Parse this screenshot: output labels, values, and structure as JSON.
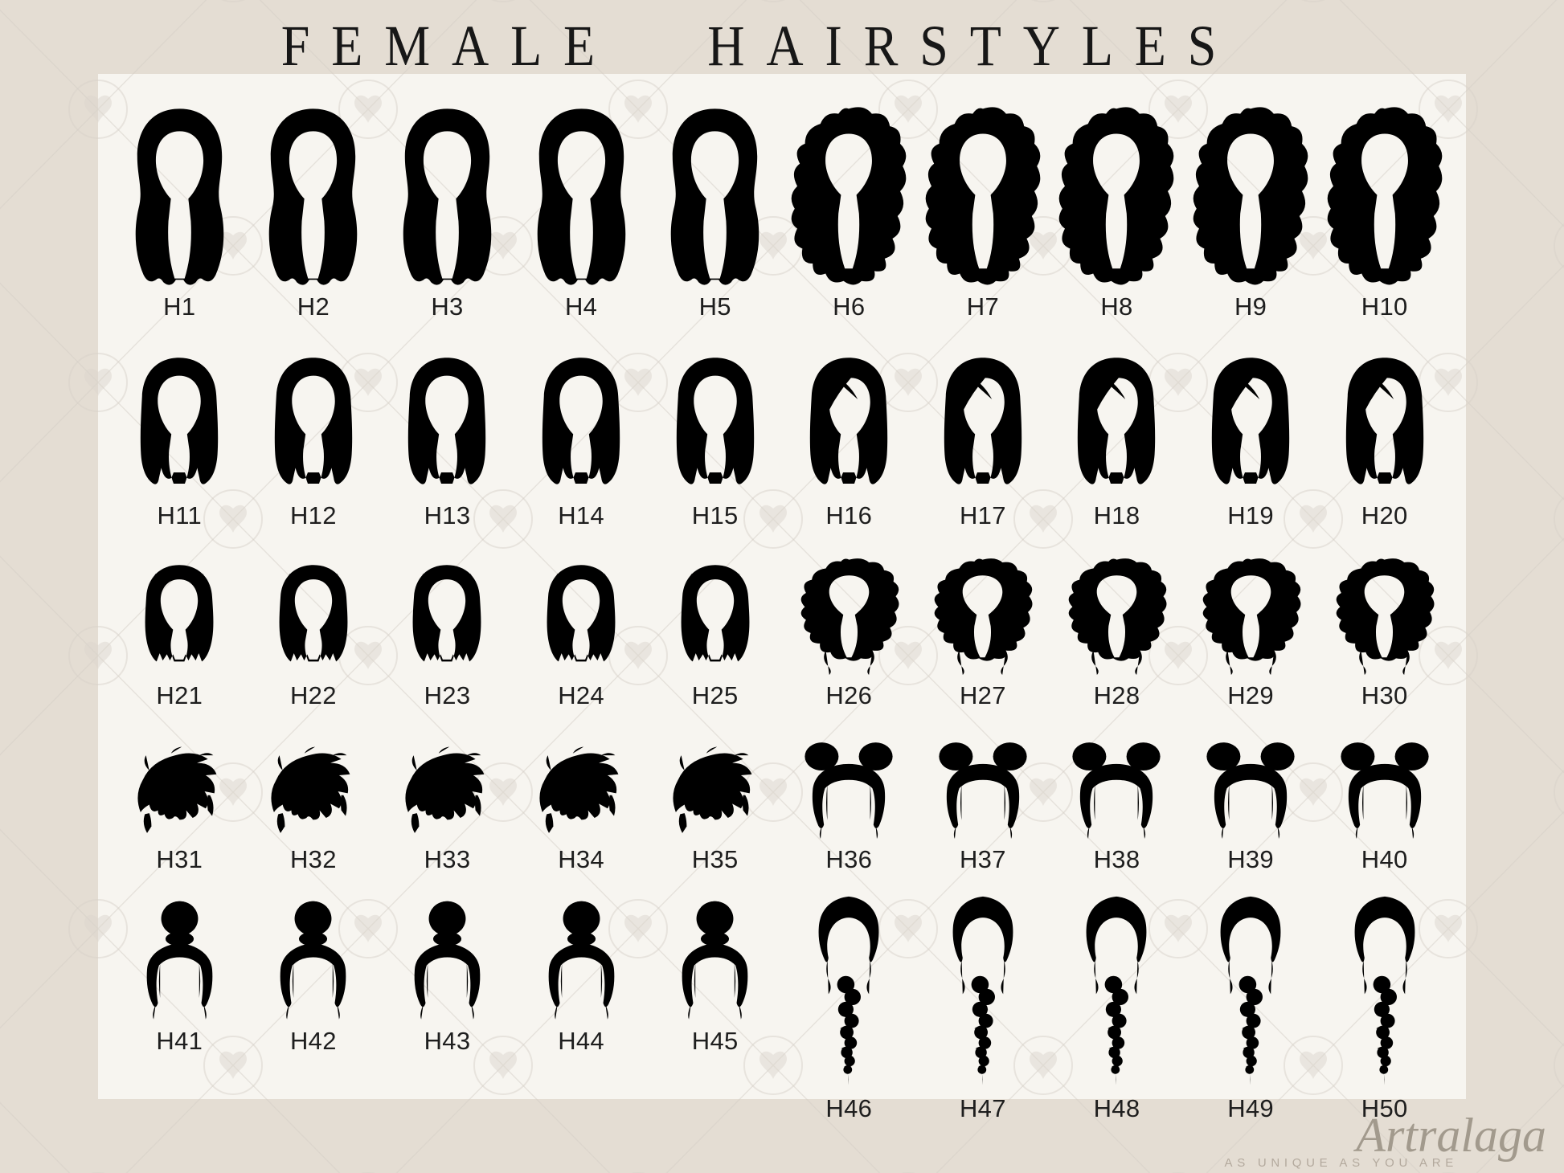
{
  "title": "FEMALE HAIRSTYLES",
  "brand": {
    "name": "Artralaga",
    "tagline": "AS UNIQUE AS YOU ARE"
  },
  "palette": {
    "page_background": "#e4ddd3",
    "panel_background": "#f7f5f0",
    "title_color": "#171717",
    "label_color": "#1e1e1e",
    "logo_color": "#a29a8d",
    "tagline_color": "#b3a99d",
    "watermark_color": "#d8d2c9"
  },
  "rows": [
    {
      "items": [
        {
          "label": "H1",
          "style": "long-wavy",
          "color": "#c8a753",
          "shade": "#8a6f2e"
        },
        {
          "label": "H2",
          "style": "long-wavy",
          "color": "#7b5b41",
          "shade": "#4e3522"
        },
        {
          "label": "H3",
          "style": "long-wavy",
          "color": "#6a452d",
          "shade": "#402615"
        },
        {
          "label": "H4",
          "style": "long-wavy",
          "color": "#3b3e43",
          "shade": "#17191c"
        },
        {
          "label": "H5",
          "style": "long-wavy",
          "color": "#b5301b",
          "shade": "#701a0c"
        },
        {
          "label": "H6",
          "style": "long-curly",
          "color": "#d9b05b",
          "shade": "#a1762b"
        },
        {
          "label": "H7",
          "style": "long-curly",
          "color": "#c87c36",
          "shade": "#8f4f1a"
        },
        {
          "label": "H8",
          "style": "long-curly",
          "color": "#6f482f",
          "shade": "#3f2716"
        },
        {
          "label": "H9",
          "style": "long-curly",
          "color": "#2f3134",
          "shade": "#0f1113"
        },
        {
          "label": "H10",
          "style": "long-curly",
          "color": "#b4505a",
          "shade": "#7a2830"
        }
      ]
    },
    {
      "items": [
        {
          "label": "H11",
          "style": "lob-straight",
          "color": "#c5a24d",
          "shade": "#8a6d2c"
        },
        {
          "label": "H12",
          "style": "lob-straight",
          "color": "#7a5a40",
          "shade": "#4c3420"
        },
        {
          "label": "H13",
          "style": "lob-straight",
          "color": "#6f4a2f",
          "shade": "#452a18"
        },
        {
          "label": "H14",
          "style": "lob-straight",
          "color": "#383b40",
          "shade": "#15171a"
        },
        {
          "label": "H15",
          "style": "lob-straight",
          "color": "#c05515",
          "shade": "#7a3008"
        },
        {
          "label": "H16",
          "style": "lob-swoop",
          "color": "#e6c49b",
          "shade": "#bd8d5e"
        },
        {
          "label": "H17",
          "style": "lob-swoop",
          "color": "#d49f41",
          "shade": "#9c6d1f"
        },
        {
          "label": "H18",
          "style": "lob-swoop",
          "color": "#7c5a36",
          "shade": "#4c331f"
        },
        {
          "label": "H19",
          "style": "lob-swoop",
          "color": "#26282b",
          "shade": "#0d0e10"
        },
        {
          "label": "H20",
          "style": "lob-swoop",
          "color": "#a63c46",
          "shade": "#691e25"
        }
      ]
    },
    {
      "items": [
        {
          "label": "H21",
          "style": "bob-straight",
          "color": "#d9a832",
          "shade": "#9f750f"
        },
        {
          "label": "H22",
          "style": "bob-straight",
          "color": "#a15d2d",
          "shade": "#693917"
        },
        {
          "label": "H23",
          "style": "bob-straight",
          "color": "#6f4c31",
          "shade": "#44281a"
        },
        {
          "label": "H24",
          "style": "bob-straight",
          "color": "#36393d",
          "shade": "#141619"
        },
        {
          "label": "H25",
          "style": "bob-straight",
          "color": "#a43b45",
          "shade": "#6b1f27"
        },
        {
          "label": "H26",
          "style": "bob-curly",
          "color": "#cba342",
          "shade": "#92701e"
        },
        {
          "label": "H27",
          "style": "bob-curly",
          "color": "#9d6339",
          "shade": "#693c1d"
        },
        {
          "label": "H28",
          "style": "bob-curly",
          "color": "#6e4428",
          "shade": "#422612"
        },
        {
          "label": "H29",
          "style": "bob-curly",
          "color": "#313438",
          "shade": "#111315"
        },
        {
          "label": "H30",
          "style": "bob-curly",
          "color": "#b23b33",
          "shade": "#751e17"
        }
      ]
    },
    {
      "items": [
        {
          "label": "H31",
          "style": "pixie",
          "color": "#cfa347",
          "shade": "#966f22"
        },
        {
          "label": "H32",
          "style": "pixie",
          "color": "#b28637",
          "shade": "#79561a"
        },
        {
          "label": "H33",
          "style": "pixie",
          "color": "#7b4f30",
          "shade": "#4c2d19"
        },
        {
          "label": "H34",
          "style": "pixie",
          "color": "#27292c",
          "shade": "#0e0f11"
        },
        {
          "label": "H35",
          "style": "pixie",
          "color": "#8f3a41",
          "shade": "#591f25"
        },
        {
          "label": "H36",
          "style": "space-buns",
          "color": "#d49c3f",
          "shade": "#9b6b1c"
        },
        {
          "label": "H37",
          "style": "space-buns",
          "color": "#b1773b",
          "shade": "#784a1d"
        },
        {
          "label": "H38",
          "style": "space-buns",
          "color": "#6c4127",
          "shade": "#412412"
        },
        {
          "label": "H39",
          "style": "space-buns",
          "color": "#2b2d31",
          "shade": "#0e1012"
        },
        {
          "label": "H40",
          "style": "space-buns",
          "color": "#b2362f",
          "shade": "#751b15"
        }
      ]
    },
    {
      "items": [
        {
          "label": "H41",
          "style": "top-bun",
          "color": "#debc82",
          "shade": "#ad8a4c"
        },
        {
          "label": "H42",
          "style": "top-bun",
          "color": "#daa84f",
          "shade": "#a27525"
        },
        {
          "label": "H43",
          "style": "top-bun",
          "color": "#6f4c33",
          "shade": "#452a19"
        },
        {
          "label": "H44",
          "style": "top-bun",
          "color": "#202225",
          "shade": "#090a0b"
        },
        {
          "label": "H45",
          "style": "top-bun",
          "color": "#b24149",
          "shade": "#762329"
        },
        {
          "label": "H46",
          "style": "braid",
          "color": "#d4b364",
          "shade": "#9e7d31"
        },
        {
          "label": "H47",
          "style": "braid",
          "color": "#b4662c",
          "shade": "#783f12"
        },
        {
          "label": "H48",
          "style": "braid",
          "color": "#8a5a33",
          "shade": "#57361a"
        },
        {
          "label": "H49",
          "style": "braid",
          "color": "#232528",
          "shade": "#0b0c0e"
        },
        {
          "label": "H50",
          "style": "braid",
          "color": "#c26257",
          "shade": "#87382f"
        }
      ]
    }
  ]
}
